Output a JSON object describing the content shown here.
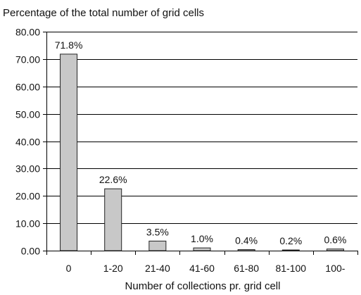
{
  "chart_data": {
    "type": "bar",
    "ylabel": "Percentage of the total number of grid cells",
    "xlabel": "Number of collections pr. grid cell",
    "categories": [
      "0",
      "1-20",
      "21-40",
      "41-60",
      "61-80",
      "81-100",
      "100-"
    ],
    "values": [
      71.8,
      22.6,
      3.5,
      1.0,
      0.4,
      0.2,
      0.6
    ],
    "data_labels": [
      "71.8%",
      "22.6%",
      "3.5%",
      "1.0%",
      "0.4%",
      "0.2%",
      "0.6%"
    ],
    "ylim": [
      0,
      80
    ],
    "yticks": [
      "0.00",
      "10.00",
      "20.00",
      "30.00",
      "40.00",
      "50.00",
      "60.00",
      "70.00",
      "80.00"
    ],
    "grid": true,
    "legend": "none",
    "colors": {
      "bar_fill": "#c8c8c8",
      "bar_stroke": "#222222",
      "grid": "#000000",
      "axis": "#000000"
    }
  }
}
